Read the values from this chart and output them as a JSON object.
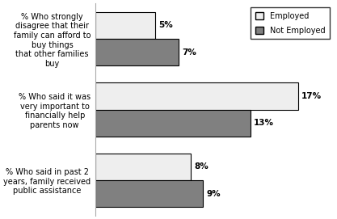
{
  "categories": [
    "% Who strongly\ndisagree that their\nfamily can afford to\nbuy things\nthat other families\nbuy",
    "% Who said it was\nvery important to\nfinancially help\nparents now",
    "% Who said in past 2\nyears, family received\npublic assistance"
  ],
  "employed_values": [
    5,
    17,
    8
  ],
  "not_employed_values": [
    7,
    13,
    9
  ],
  "employed_color": "#eeeeee",
  "not_employed_color": "#808080",
  "bar_edge_color": "#000000",
  "xlim": [
    0,
    20
  ],
  "legend_labels": [
    "Employed",
    "Not Employed"
  ],
  "bar_height": 0.38,
  "label_fontsize": 7,
  "value_fontsize": 7.5,
  "background_color": "#ffffff"
}
